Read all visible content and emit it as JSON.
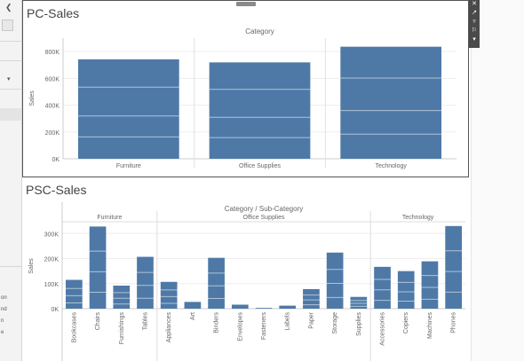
{
  "worksheet_top": {
    "title": "PC-Sales",
    "chart_data": {
      "type": "bar",
      "title": "Category",
      "xlabel": "",
      "ylabel": "Sales",
      "ylim": [
        0,
        900000
      ],
      "yticks": [
        "0K",
        "200K",
        "400K",
        "600K",
        "800K"
      ],
      "ytick_values": [
        0,
        200000,
        400000,
        600000,
        800000
      ],
      "categories": [
        "Furniture",
        "Office Supplies",
        "Technology"
      ],
      "values": [
        742000,
        719000,
        836000
      ],
      "color": "#4e79a7"
    }
  },
  "worksheet_bottom": {
    "title": "PSC-Sales",
    "chart_data": {
      "type": "bar",
      "title": "Category / Sub-Category",
      "xlabel": "",
      "ylabel": "Sales",
      "ylim": [
        0,
        340000
      ],
      "yticks": [
        "0K",
        "100K",
        "200K",
        "300K"
      ],
      "ytick_values": [
        0,
        100000,
        200000,
        300000
      ],
      "groups": [
        {
          "name": "Furniture",
          "categories": [
            "Bookcases",
            "Chairs",
            "Furnishings",
            "Tables"
          ],
          "values": [
            115000,
            328000,
            92000,
            207000
          ]
        },
        {
          "name": "Office Supplies",
          "categories": [
            "Appliances",
            "Art",
            "Binders",
            "Envelopes",
            "Fasteners",
            "Labels",
            "Paper",
            "Storage",
            "Supplies"
          ],
          "values": [
            107000,
            27000,
            203000,
            16000,
            3000,
            12000,
            78000,
            224000,
            47000
          ]
        },
        {
          "name": "Technology",
          "categories": [
            "Accessories",
            "Copiers",
            "Machines",
            "Phones"
          ],
          "values": [
            167000,
            150000,
            189000,
            330000
          ]
        }
      ],
      "color": "#4e79a7"
    }
  },
  "toolbar": {
    "close_icon": "close-icon",
    "export_icon": "export-icon",
    "filter_icon": "filter-icon",
    "pin_icon": "pin-icon",
    "more_icon": "more-icon"
  },
  "left_panel": {
    "partial_texts": [
      "on",
      "nd",
      "n",
      "e"
    ]
  }
}
